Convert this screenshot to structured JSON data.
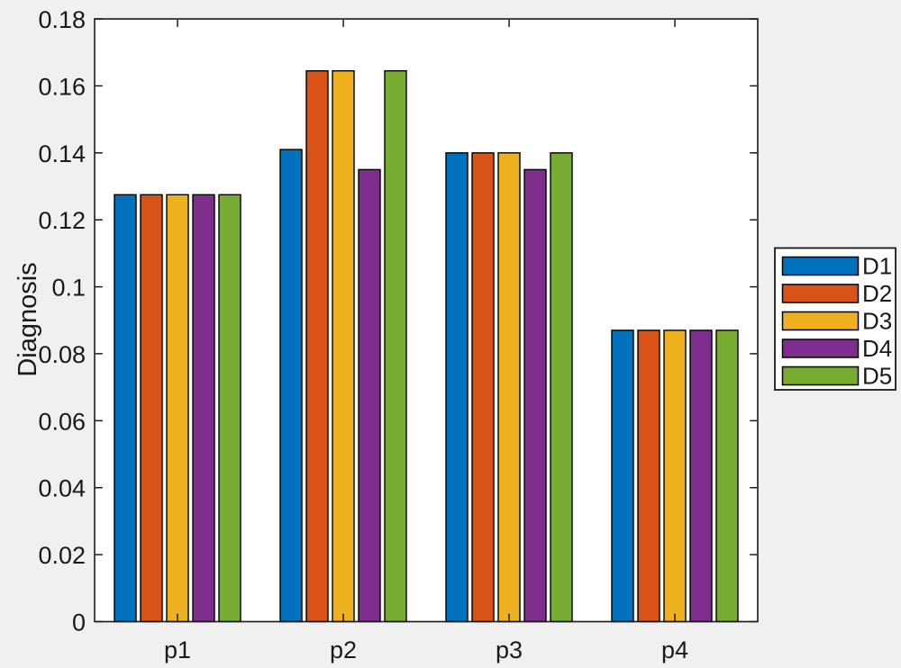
{
  "figure": {
    "background": "#f0f0f0",
    "plot_background": "#ffffff",
    "axis_color": "#1a1a1a",
    "bar_edge_color": "#000000"
  },
  "chart_data": {
    "type": "bar",
    "title": "",
    "xlabel": "",
    "ylabel": "Diagnosis",
    "categories": [
      "p1",
      "p2",
      "p3",
      "p4"
    ],
    "series": [
      {
        "name": "D1",
        "color": "#0072BD",
        "values": [
          0.1275,
          0.141,
          0.14,
          0.087
        ]
      },
      {
        "name": "D2",
        "color": "#D95319",
        "values": [
          0.1275,
          0.1645,
          0.14,
          0.087
        ]
      },
      {
        "name": "D3",
        "color": "#EDB120",
        "values": [
          0.1275,
          0.1645,
          0.14,
          0.087
        ]
      },
      {
        "name": "D4",
        "color": "#7E2F8E",
        "values": [
          0.1275,
          0.135,
          0.135,
          0.087
        ]
      },
      {
        "name": "D5",
        "color": "#77AC30",
        "values": [
          0.1275,
          0.1645,
          0.14,
          0.087
        ]
      }
    ],
    "ylim": [
      0,
      0.18
    ],
    "ytick_labels": [
      "0",
      "0.02",
      "0.04",
      "0.06",
      "0.08",
      "0.1",
      "0.12",
      "0.14",
      "0.16",
      "0.18"
    ],
    "grid": false,
    "legend_position": "outside-right",
    "legend_entries": [
      "D1",
      "D2",
      "D3",
      "D4",
      "D5"
    ]
  }
}
